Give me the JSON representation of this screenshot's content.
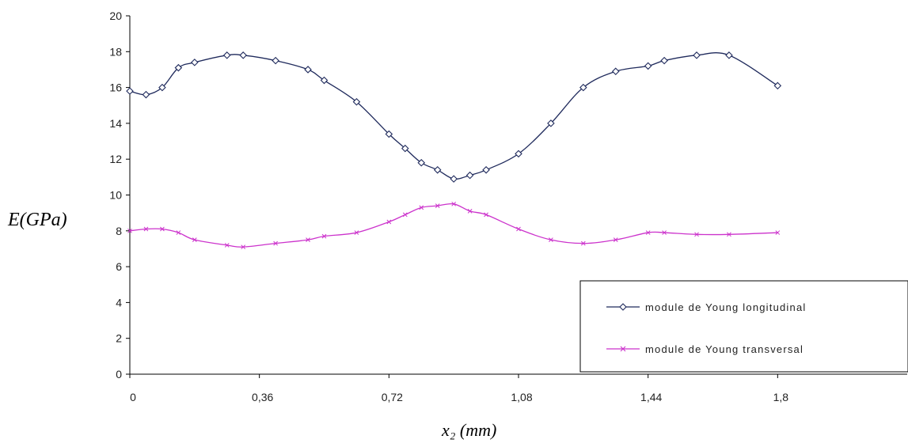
{
  "chart_data": {
    "type": "line",
    "xlabel": "x₂ (mm)",
    "ylabel": "E(GPa)",
    "xlim": [
      0,
      2.16
    ],
    "ylim": [
      0,
      20
    ],
    "xticks": [
      "0",
      "0,36",
      "0,72",
      "1,08",
      "1,44",
      "1,8"
    ],
    "yticks": [
      "0",
      "2",
      "4",
      "6",
      "8",
      "10",
      "12",
      "14",
      "16",
      "18",
      "20"
    ],
    "legend_position": "bottom-right",
    "grid": false,
    "series": [
      {
        "name": "module de Young longitudinal",
        "color": "#1f2a5c",
        "marker": "diamond",
        "x": [
          0,
          0.045,
          0.09,
          0.135,
          0.18,
          0.27,
          0.315,
          0.405,
          0.495,
          0.54,
          0.63,
          0.72,
          0.765,
          0.81,
          0.855,
          0.9,
          0.945,
          0.99,
          1.08,
          1.17,
          1.26,
          1.35,
          1.44,
          1.485,
          1.575,
          1.665,
          1.8
        ],
        "y": [
          15.8,
          15.6,
          16.0,
          17.1,
          17.4,
          17.8,
          17.8,
          17.5,
          17.0,
          16.4,
          15.2,
          13.4,
          12.6,
          11.8,
          11.4,
          10.9,
          11.1,
          11.4,
          12.3,
          14.0,
          16.0,
          16.9,
          17.2,
          17.5,
          17.8,
          17.8,
          16.1
        ]
      },
      {
        "name": "module de Young transversal",
        "color": "#cc33cc",
        "marker": "star",
        "x": [
          0,
          0.045,
          0.09,
          0.135,
          0.18,
          0.27,
          0.315,
          0.405,
          0.495,
          0.54,
          0.63,
          0.72,
          0.765,
          0.81,
          0.855,
          0.9,
          0.945,
          0.99,
          1.08,
          1.17,
          1.26,
          1.35,
          1.44,
          1.485,
          1.575,
          1.665,
          1.8
        ],
        "y": [
          8.0,
          8.1,
          8.1,
          7.9,
          7.5,
          7.2,
          7.1,
          7.3,
          7.5,
          7.7,
          7.9,
          8.5,
          8.9,
          9.3,
          9.4,
          9.5,
          9.1,
          8.9,
          8.1,
          7.5,
          7.3,
          7.5,
          7.9,
          7.9,
          7.8,
          7.8,
          7.9
        ]
      }
    ]
  }
}
